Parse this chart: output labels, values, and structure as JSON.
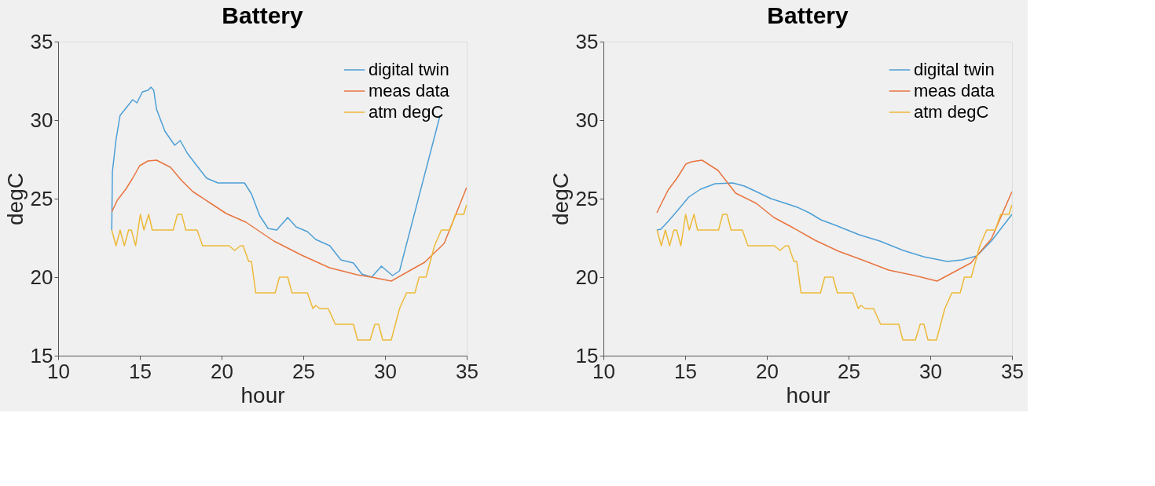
{
  "chart_data": [
    {
      "type": "line",
      "title": "Battery",
      "xlabel": "hour",
      "ylabel": "degC",
      "xlim": [
        10,
        35
      ],
      "ylim": [
        15,
        35
      ],
      "xticks": [
        10,
        15,
        20,
        25,
        30,
        35
      ],
      "yticks": [
        15,
        20,
        25,
        30,
        35
      ],
      "legend": "top right",
      "grid": false,
      "series": [
        {
          "name": "digital twin",
          "color": "#4d9fd6",
          "x": [
            13.28,
            13.32,
            13.54,
            13.79,
            14.14,
            14.56,
            14.82,
            15.16,
            15.5,
            15.68,
            15.85,
            16.02,
            16.53,
            17.13,
            17.47,
            17.9,
            18.41,
            19.09,
            19.78,
            21.4,
            21.83,
            22.34,
            22.85,
            23.37,
            24.05,
            24.56,
            25.25,
            25.76,
            26.62,
            27.3,
            28.07,
            28.58,
            29.18,
            29.78,
            30.46,
            30.89,
            33.37
          ],
          "values": [
            23.0,
            26.7,
            28.75,
            30.3,
            30.75,
            31.3,
            31.1,
            31.8,
            31.9,
            32.1,
            31.9,
            30.7,
            29.3,
            28.4,
            28.7,
            27.9,
            27.2,
            26.3,
            26.0,
            26.0,
            25.3,
            23.9,
            23.1,
            23.0,
            23.8,
            23.2,
            22.9,
            22.4,
            22.0,
            21.1,
            20.9,
            20.2,
            20.0,
            20.7,
            20.1,
            20.4,
            30.3
          ]
        },
        {
          "name": "meas data",
          "color": "#e8743f",
          "x": [
            13.28,
            13.62,
            14.14,
            14.56,
            14.99,
            15.5,
            16.02,
            16.87,
            17.56,
            18.24,
            19.26,
            20.29,
            21.49,
            23.2,
            24.9,
            26.6,
            28.3,
            29.18,
            30.38,
            31.23,
            32.43,
            33.62,
            34.99
          ],
          "values": [
            24.15,
            24.9,
            25.6,
            26.3,
            27.1,
            27.4,
            27.45,
            27.0,
            26.15,
            25.45,
            24.75,
            24.05,
            23.5,
            22.3,
            21.4,
            20.6,
            20.15,
            20.0,
            19.75,
            20.25,
            20.95,
            22.15,
            25.7
          ]
        },
        {
          "name": "atm degC",
          "color": "#edb938",
          "x": [
            13.28,
            13.54,
            13.79,
            14.05,
            14.31,
            14.48,
            14.74,
            15.03,
            15.25,
            15.54,
            15.76,
            17.04,
            17.3,
            17.56,
            17.81,
            18.5,
            18.84,
            20.46,
            20.8,
            21.15,
            21.32,
            21.66,
            21.83,
            22.09,
            23.28,
            23.54,
            24.05,
            24.31,
            25.25,
            25.59,
            25.76,
            26.02,
            26.53,
            26.96,
            28.07,
            28.32,
            29.09,
            29.38,
            29.61,
            29.86,
            30.38,
            30.89,
            31.32,
            31.83,
            32.09,
            32.51,
            32.77,
            33.03,
            33.45,
            33.97,
            34.31,
            34.82,
            34.99
          ],
          "values": [
            23,
            22,
            23,
            22,
            23,
            23,
            22,
            24,
            23,
            24,
            23,
            23,
            24,
            24,
            23,
            23,
            22,
            22,
            21.7,
            22,
            22,
            21,
            21,
            19,
            19,
            20,
            20,
            19,
            19,
            18,
            18.2,
            18,
            18,
            17,
            17,
            16,
            16,
            17,
            17,
            16,
            16,
            18,
            19,
            19,
            20,
            20,
            21,
            22,
            23,
            23,
            24,
            24,
            24.6
          ]
        }
      ]
    },
    {
      "type": "line",
      "title": "Battery",
      "xlabel": "hour",
      "ylabel": "degC",
      "xlim": [
        10,
        35
      ],
      "ylim": [
        15,
        35
      ],
      "xticks": [
        10,
        15,
        20,
        25,
        30,
        35
      ],
      "yticks": [
        15,
        20,
        25,
        30,
        35
      ],
      "legend": "top right",
      "grid": false,
      "series": [
        {
          "name": "digital twin",
          "color": "#4d9fd6",
          "x": [
            13.27,
            13.51,
            13.96,
            14.5,
            15.22,
            15.94,
            16.83,
            17.91,
            18.63,
            19.35,
            20.25,
            21.15,
            21.87,
            22.59,
            23.31,
            24.21,
            25.65,
            26.91,
            28.35,
            29.6,
            31.04,
            31.94,
            32.84,
            33.74,
            35.0
          ],
          "values": [
            23.0,
            23.05,
            23.55,
            24.2,
            25.1,
            25.6,
            25.95,
            26.0,
            25.8,
            25.45,
            25.0,
            24.7,
            24.45,
            24.1,
            23.65,
            23.3,
            22.7,
            22.3,
            21.7,
            21.3,
            21.0,
            21.1,
            21.35,
            22.3,
            24.0
          ]
        },
        {
          "name": "meas data",
          "color": "#e8743f",
          "x": [
            13.27,
            13.6,
            13.96,
            14.5,
            15.04,
            15.4,
            16.03,
            17.01,
            18.09,
            19.35,
            20.43,
            21.51,
            22.95,
            24.39,
            25.83,
            27.45,
            29.06,
            30.41,
            31.4,
            32.48,
            33.74,
            35.0
          ],
          "values": [
            24.1,
            24.8,
            25.55,
            26.3,
            27.2,
            27.35,
            27.45,
            26.8,
            25.35,
            24.7,
            23.8,
            23.2,
            22.35,
            21.65,
            21.1,
            20.45,
            20.1,
            19.75,
            20.3,
            20.9,
            22.45,
            25.45
          ]
        },
        {
          "name": "atm degC",
          "color": "#edb938",
          "x": [
            13.28,
            13.54,
            13.79,
            14.05,
            14.31,
            14.48,
            14.74,
            15.03,
            15.25,
            15.54,
            15.76,
            17.04,
            17.3,
            17.56,
            17.81,
            18.5,
            18.84,
            20.46,
            20.8,
            21.15,
            21.32,
            21.66,
            21.83,
            22.09,
            23.28,
            23.54,
            24.05,
            24.31,
            25.25,
            25.59,
            25.76,
            26.02,
            26.53,
            26.96,
            28.07,
            28.32,
            29.09,
            29.38,
            29.61,
            29.86,
            30.38,
            30.89,
            31.32,
            31.83,
            32.09,
            32.51,
            32.77,
            33.03,
            33.45,
            33.97,
            34.31,
            34.82,
            34.99
          ],
          "values": [
            23,
            22,
            23,
            22,
            23,
            23,
            22,
            24,
            23,
            24,
            23,
            23,
            24,
            24,
            23,
            23,
            22,
            22,
            21.7,
            22,
            22,
            21,
            21,
            19,
            19,
            20,
            20,
            19,
            19,
            18,
            18.2,
            18,
            18,
            17,
            17,
            16,
            16,
            17,
            17,
            16,
            16,
            18,
            19,
            19,
            20,
            20,
            21,
            22,
            23,
            23,
            24,
            24,
            24.6
          ]
        }
      ]
    }
  ]
}
